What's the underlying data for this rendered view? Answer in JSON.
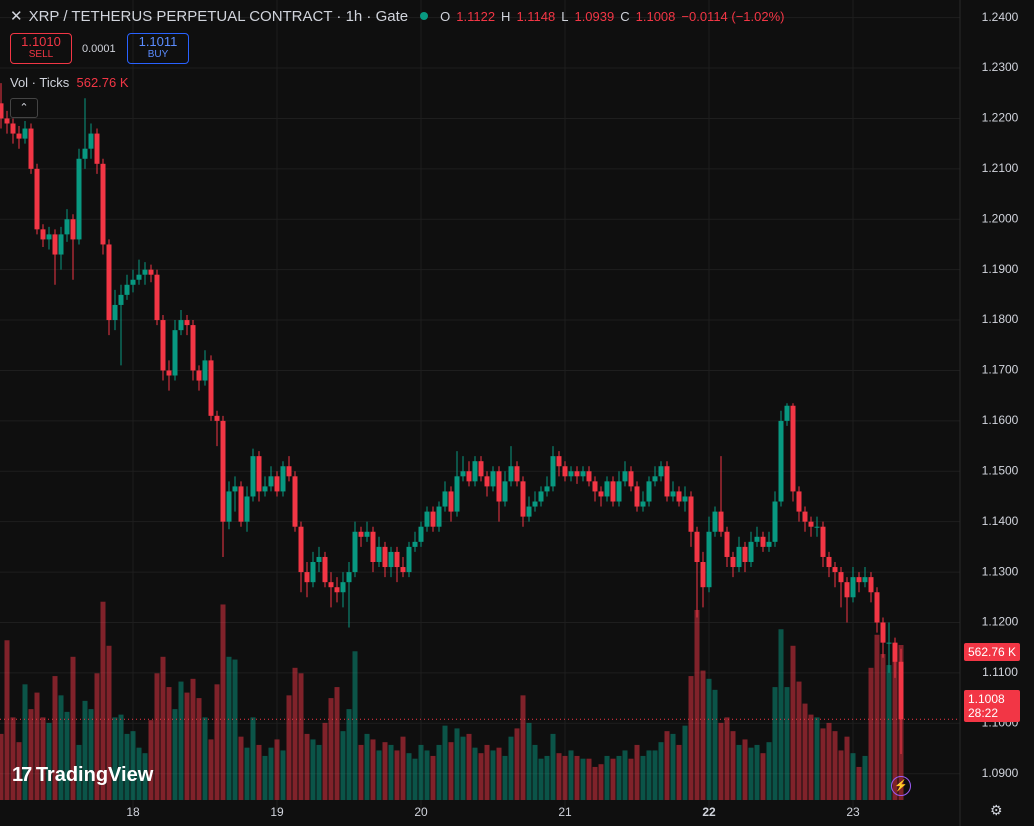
{
  "header": {
    "symbol": "XRP / TETHERUS PERPETUAL CONTRACT · 1h · Gate",
    "ohlc_keys": [
      "O",
      "H",
      "L",
      "C"
    ],
    "change": "−0.0114 (−1.02%)"
  },
  "trade": {
    "sell_price": "1.1010",
    "sell": "SELL",
    "spread": "0.0001",
    "buy_price": "1.1011",
    "buy": "BUY"
  },
  "indicator": {
    "name": "Vol · Ticks",
    "last_label": "562.76 K"
  },
  "countdown": "28:22",
  "logo": "TradingView",
  "chart_data": {
    "type": "candlestick",
    "up_color": "#089981",
    "down_color": "#f23645",
    "grid": true,
    "categories": [
      null,
      null,
      null,
      null,
      null,
      null,
      null,
      null,
      null,
      null,
      null,
      null,
      null,
      null,
      null,
      null,
      null,
      null,
      null,
      null,
      null,
      null,
      "18",
      null,
      null,
      null,
      null,
      null,
      null,
      null,
      null,
      null,
      null,
      null,
      null,
      null,
      null,
      null,
      null,
      null,
      null,
      null,
      null,
      null,
      null,
      null,
      "19",
      null,
      null,
      null,
      null,
      null,
      null,
      null,
      null,
      null,
      null,
      null,
      null,
      null,
      null,
      null,
      null,
      null,
      null,
      null,
      null,
      null,
      null,
      null,
      "20",
      null,
      null,
      null,
      null,
      null,
      null,
      null,
      null,
      null,
      null,
      null,
      null,
      null,
      null,
      null,
      null,
      null,
      null,
      null,
      null,
      null,
      null,
      null,
      "21",
      null,
      null,
      null,
      null,
      null,
      null,
      null,
      null,
      null,
      null,
      null,
      null,
      null,
      null,
      null,
      null,
      null,
      null,
      null,
      null,
      null,
      null,
      null,
      "22",
      null,
      null,
      null,
      null,
      null,
      null,
      null,
      null,
      null,
      null,
      null,
      null,
      null,
      null,
      null,
      null,
      null,
      null,
      null,
      null,
      null,
      null,
      null,
      "23",
      null,
      null,
      null,
      null,
      null,
      null,
      null,
      null
    ],
    "open": [
      1.223,
      1.22,
      1.219,
      1.217,
      1.216,
      1.218,
      1.21,
      1.198,
      1.196,
      1.197,
      1.193,
      1.197,
      1.2,
      1.196,
      1.212,
      1.214,
      1.217,
      1.211,
      1.195,
      1.18,
      1.183,
      1.185,
      1.187,
      1.188,
      1.189,
      1.19,
      1.189,
      1.18,
      1.17,
      1.169,
      1.178,
      1.18,
      1.179,
      1.17,
      1.168,
      1.172,
      1.161,
      1.16,
      1.14,
      1.146,
      1.147,
      1.14,
      1.145,
      1.153,
      1.146,
      1.147,
      1.149,
      1.146,
      1.151,
      1.149,
      1.139,
      1.13,
      1.128,
      1.132,
      1.133,
      1.128,
      1.127,
      1.126,
      1.128,
      1.13,
      1.138,
      1.137,
      1.138,
      1.132,
      1.135,
      1.131,
      1.134,
      1.131,
      1.13,
      1.135,
      1.136,
      1.139,
      1.142,
      1.139,
      1.143,
      1.146,
      1.142,
      1.149,
      1.15,
      1.148,
      1.152,
      1.149,
      1.147,
      1.15,
      1.144,
      1.148,
      1.151,
      1.148,
      1.141,
      1.143,
      1.144,
      1.146,
      1.147,
      1.153,
      1.151,
      1.149,
      1.15,
      1.149,
      1.15,
      1.148,
      1.146,
      1.145,
      1.148,
      1.144,
      1.148,
      1.15,
      1.147,
      1.143,
      1.144,
      1.148,
      1.149,
      1.151,
      1.145,
      1.146,
      1.144,
      1.145,
      1.138,
      1.132,
      1.127,
      1.138,
      1.142,
      1.138,
      1.133,
      1.131,
      1.135,
      1.132,
      1.136,
      1.137,
      1.135,
      1.136,
      1.144,
      1.16,
      1.163,
      1.146,
      1.142,
      1.14,
      1.139,
      1.139,
      1.133,
      1.131,
      1.13,
      1.128,
      1.125,
      1.129,
      1.128,
      1.129,
      1.126,
      1.12,
      1.116,
      1.116,
      1.1122
    ],
    "high": [
      1.227,
      1.2215,
      1.22,
      1.2185,
      1.2195,
      1.219,
      1.211,
      1.199,
      1.1985,
      1.198,
      1.1985,
      1.202,
      1.201,
      1.214,
      1.224,
      1.219,
      1.218,
      1.212,
      1.196,
      1.186,
      1.187,
      1.189,
      1.19,
      1.192,
      1.1915,
      1.191,
      1.19,
      1.181,
      1.172,
      1.18,
      1.182,
      1.181,
      1.18,
      1.171,
      1.174,
      1.173,
      1.162,
      1.161,
      1.148,
      1.149,
      1.148,
      1.147,
      1.1545,
      1.154,
      1.149,
      1.151,
      1.15,
      1.152,
      1.153,
      1.15,
      1.14,
      1.132,
      1.134,
      1.135,
      1.134,
      1.13,
      1.129,
      1.13,
      1.132,
      1.14,
      1.139,
      1.14,
      1.139,
      1.137,
      1.136,
      1.135,
      1.135,
      1.133,
      1.136,
      1.138,
      1.14,
      1.143,
      1.143,
      1.144,
      1.148,
      1.147,
      1.154,
      1.153,
      1.152,
      1.153,
      1.153,
      1.15,
      1.151,
      1.151,
      1.15,
      1.155,
      1.152,
      1.149,
      1.145,
      1.146,
      1.147,
      1.149,
      1.155,
      1.154,
      1.152,
      1.151,
      1.151,
      1.151,
      1.151,
      1.149,
      1.147,
      1.149,
      1.149,
      1.15,
      1.152,
      1.151,
      1.148,
      1.146,
      1.149,
      1.151,
      1.152,
      1.152,
      1.148,
      1.147,
      1.147,
      1.146,
      1.139,
      1.134,
      1.141,
      1.143,
      1.153,
      1.139,
      1.134,
      1.137,
      1.136,
      1.138,
      1.139,
      1.138,
      1.138,
      1.146,
      1.162,
      1.1635,
      1.1635,
      1.147,
      1.143,
      1.141,
      1.141,
      1.14,
      1.134,
      1.132,
      1.131,
      1.129,
      1.131,
      1.13,
      1.131,
      1.13,
      1.127,
      1.121,
      1.12,
      1.117,
      1.1148
    ],
    "low": [
      1.218,
      1.217,
      1.215,
      1.214,
      1.215,
      1.209,
      1.197,
      1.1945,
      1.194,
      1.187,
      1.19,
      1.1955,
      1.188,
      1.195,
      1.21,
      1.212,
      1.209,
      1.193,
      1.177,
      1.178,
      1.171,
      1.184,
      1.1855,
      1.187,
      1.187,
      1.1875,
      1.179,
      1.168,
      1.166,
      1.168,
      1.177,
      1.177,
      1.168,
      1.166,
      1.167,
      1.16,
      1.155,
      1.133,
      1.1385,
      1.142,
      1.139,
      1.138,
      1.144,
      1.144,
      1.145,
      1.146,
      1.145,
      1.145,
      1.148,
      1.138,
      1.126,
      1.125,
      1.127,
      1.13,
      1.127,
      1.123,
      1.124,
      1.123,
      1.119,
      1.129,
      1.135,
      1.136,
      1.13,
      1.131,
      1.129,
      1.129,
      1.128,
      1.129,
      1.129,
      1.134,
      1.135,
      1.138,
      1.138,
      1.138,
      1.142,
      1.14,
      1.141,
      1.148,
      1.147,
      1.147,
      1.148,
      1.145,
      1.146,
      1.14,
      1.143,
      1.147,
      1.147,
      1.139,
      1.14,
      1.142,
      1.143,
      1.145,
      1.146,
      1.149,
      1.148,
      1.148,
      1.1475,
      1.148,
      1.147,
      1.144,
      1.143,
      1.144,
      1.143,
      1.143,
      1.147,
      1.146,
      1.142,
      1.142,
      1.143,
      1.147,
      1.148,
      1.144,
      1.144,
      1.143,
      1.142,
      1.135,
      1.121,
      1.123,
      1.126,
      1.137,
      1.137,
      1.131,
      1.129,
      1.13,
      1.13,
      1.131,
      1.135,
      1.134,
      1.134,
      1.135,
      1.143,
      1.159,
      1.144,
      1.14,
      1.138,
      1.137,
      1.137,
      1.131,
      1.129,
      1.127,
      1.123,
      1.12,
      1.124,
      1.126,
      1.127,
      1.124,
      1.118,
      1.113,
      1.11,
      1.109,
      1.0939
    ],
    "close": [
      1.22,
      1.219,
      1.217,
      1.216,
      1.218,
      1.21,
      1.198,
      1.196,
      1.197,
      1.193,
      1.197,
      1.2,
      1.196,
      1.212,
      1.214,
      1.217,
      1.211,
      1.195,
      1.18,
      1.183,
      1.185,
      1.187,
      1.188,
      1.189,
      1.19,
      1.189,
      1.18,
      1.17,
      1.169,
      1.178,
      1.18,
      1.179,
      1.17,
      1.168,
      1.172,
      1.161,
      1.16,
      1.14,
      1.146,
      1.147,
      1.14,
      1.145,
      1.153,
      1.146,
      1.147,
      1.149,
      1.146,
      1.151,
      1.149,
      1.139,
      1.13,
      1.128,
      1.132,
      1.133,
      1.128,
      1.127,
      1.126,
      1.128,
      1.13,
      1.138,
      1.137,
      1.138,
      1.132,
      1.135,
      1.131,
      1.134,
      1.131,
      1.13,
      1.135,
      1.136,
      1.139,
      1.142,
      1.139,
      1.143,
      1.146,
      1.142,
      1.149,
      1.15,
      1.148,
      1.152,
      1.149,
      1.147,
      1.15,
      1.144,
      1.148,
      1.151,
      1.148,
      1.141,
      1.143,
      1.144,
      1.146,
      1.147,
      1.153,
      1.151,
      1.149,
      1.15,
      1.149,
      1.15,
      1.148,
      1.146,
      1.145,
      1.148,
      1.144,
      1.148,
      1.15,
      1.147,
      1.143,
      1.144,
      1.148,
      1.149,
      1.151,
      1.145,
      1.146,
      1.144,
      1.145,
      1.138,
      1.132,
      1.127,
      1.138,
      1.142,
      1.138,
      1.133,
      1.131,
      1.135,
      1.132,
      1.136,
      1.137,
      1.135,
      1.136,
      1.144,
      1.16,
      1.163,
      1.146,
      1.142,
      1.14,
      1.139,
      1.139,
      1.133,
      1.131,
      1.13,
      1.128,
      1.125,
      1.129,
      1.128,
      1.129,
      1.126,
      1.12,
      1.116,
      1.116,
      1.1122,
      1.1008
    ],
    "volume": [
      240,
      580,
      300,
      210,
      420,
      330,
      390,
      300,
      280,
      450,
      380,
      320,
      520,
      200,
      360,
      330,
      460,
      720,
      560,
      300,
      310,
      240,
      250,
      190,
      170,
      290,
      460,
      520,
      410,
      330,
      430,
      390,
      440,
      370,
      300,
      220,
      420,
      710,
      520,
      510,
      230,
      190,
      300,
      200,
      160,
      190,
      220,
      180,
      380,
      480,
      460,
      240,
      220,
      200,
      280,
      370,
      410,
      250,
      330,
      540,
      200,
      240,
      220,
      180,
      210,
      200,
      180,
      230,
      170,
      150,
      200,
      180,
      160,
      200,
      270,
      210,
      260,
      230,
      240,
      190,
      170,
      200,
      180,
      190,
      160,
      230,
      260,
      380,
      280,
      200,
      150,
      160,
      240,
      170,
      160,
      180,
      160,
      150,
      150,
      120,
      130,
      160,
      150,
      160,
      180,
      150,
      200,
      160,
      180,
      180,
      210,
      250,
      240,
      200,
      270,
      450,
      690,
      470,
      440,
      400,
      280,
      300,
      250,
      200,
      220,
      190,
      200,
      170,
      210,
      410,
      620,
      410,
      560,
      430,
      350,
      310,
      300,
      260,
      280,
      250,
      180,
      230,
      170,
      120,
      160,
      480,
      600,
      530,
      490,
      560,
      562.76
    ],
    "ylim": [
      1.0824,
      1.2435
    ],
    "yticks": [
      {
        "value": 1.24,
        "label": "1.2400"
      },
      {
        "value": 1.23,
        "label": "1.2300"
      },
      {
        "value": 1.22,
        "label": "1.2200"
      },
      {
        "value": 1.21,
        "label": "1.2100"
      },
      {
        "value": 1.2,
        "label": "1.2000"
      },
      {
        "value": 1.19,
        "label": "1.1900"
      },
      {
        "value": 1.18,
        "label": "1.1800"
      },
      {
        "value": 1.17,
        "label": "1.1700"
      },
      {
        "value": 1.16,
        "label": "1.1600"
      },
      {
        "value": 1.15,
        "label": "1.1500"
      },
      {
        "value": 1.14,
        "label": "1.1400"
      },
      {
        "value": 1.13,
        "label": "1.1300"
      },
      {
        "value": 1.12,
        "label": "1.1200"
      },
      {
        "value": 1.11,
        "label": "1.1100"
      },
      {
        "value": 1.1,
        "label": "1.1000"
      },
      {
        "value": 1.09,
        "label": "1.0900"
      }
    ]
  }
}
